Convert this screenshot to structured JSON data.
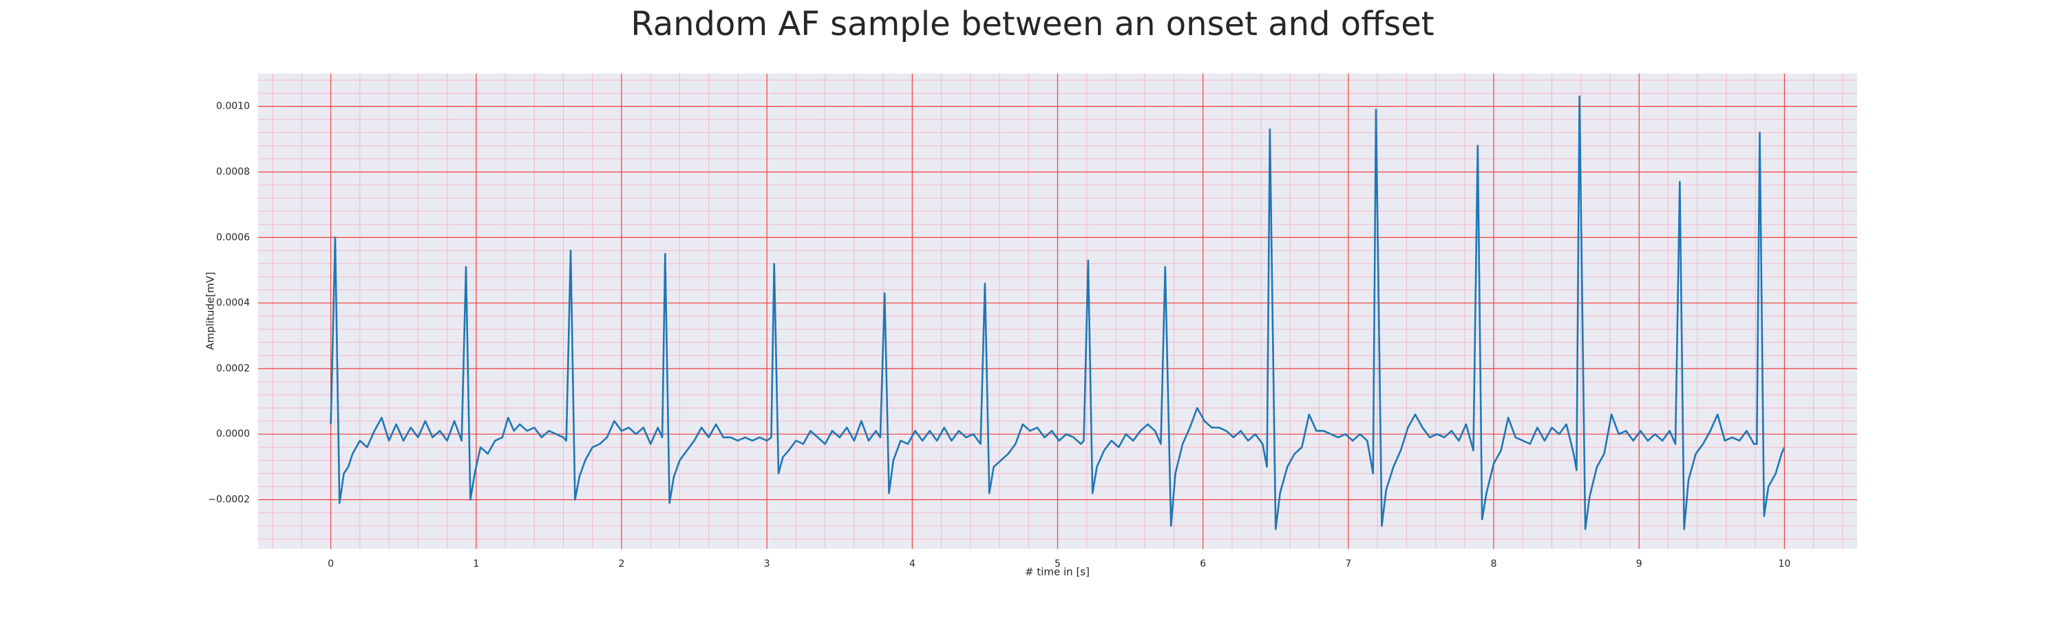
{
  "chart_data": {
    "type": "line",
    "title": "Random AF sample between an onset and offset",
    "x_label": "# time in [s]",
    "y_label": "Amplitude[mV]",
    "color": "#1f77b4",
    "grid": true,
    "minor_grid": true,
    "xlim": [
      -0.5,
      10.5
    ],
    "ylim": [
      -0.00035,
      0.0011
    ],
    "xticks": [
      0,
      1,
      2,
      3,
      4,
      5,
      6,
      7,
      8,
      9,
      10
    ],
    "yticks": [
      {
        "value": -0.0002,
        "label": "−0.0002"
      },
      {
        "value": 0,
        "label": "0.0000"
      },
      {
        "value": 0.0002,
        "label": "0.0002"
      },
      {
        "value": 0.0004,
        "label": "0.0004"
      },
      {
        "value": 0.0006,
        "label": "0.0006"
      },
      {
        "value": 0.0008,
        "label": "0.0008"
      },
      {
        "value": 0.001,
        "label": "0.0010"
      }
    ],
    "x": [
      0,
      0.03,
      0.06,
      0.09,
      0.12,
      0.15,
      0.2,
      0.25,
      0.3,
      0.35,
      0.4,
      0.45,
      0.5,
      0.55,
      0.6,
      0.65,
      0.7,
      0.75,
      0.8,
      0.85,
      0.9,
      0.93,
      0.96,
      0.99,
      1.03,
      1.08,
      1.13,
      1.18,
      1.22,
      1.26,
      1.3,
      1.35,
      1.4,
      1.45,
      1.5,
      1.55,
      1.6,
      1.62,
      1.65,
      1.68,
      1.71,
      1.75,
      1.8,
      1.85,
      1.9,
      1.95,
      2,
      2.05,
      2.1,
      2.15,
      2.2,
      2.25,
      2.28,
      2.3,
      2.33,
      2.36,
      2.4,
      2.45,
      2.5,
      2.55,
      2.6,
      2.65,
      2.7,
      2.75,
      2.8,
      2.85,
      2.9,
      2.95,
      3,
      3.03,
      3.05,
      3.08,
      3.11,
      3.15,
      3.2,
      3.25,
      3.3,
      3.35,
      3.4,
      3.45,
      3.5,
      3.55,
      3.6,
      3.65,
      3.7,
      3.75,
      3.78,
      3.81,
      3.84,
      3.87,
      3.92,
      3.97,
      4.02,
      4.07,
      4.12,
      4.17,
      4.22,
      4.27,
      4.32,
      4.37,
      4.42,
      4.47,
      4.5,
      4.53,
      4.56,
      4.61,
      4.66,
      4.71,
      4.76,
      4.81,
      4.86,
      4.91,
      4.96,
      5.01,
      5.06,
      5.11,
      5.16,
      5.18,
      5.21,
      5.24,
      5.27,
      5.32,
      5.37,
      5.42,
      5.47,
      5.52,
      5.57,
      5.62,
      5.67,
      5.71,
      5.74,
      5.78,
      5.81,
      5.86,
      5.91,
      5.96,
      6.01,
      6.06,
      6.11,
      6.16,
      6.21,
      6.26,
      6.31,
      6.36,
      6.41,
      6.44,
      6.46,
      6.5,
      6.53,
      6.58,
      6.63,
      6.68,
      6.73,
      6.78,
      6.83,
      6.88,
      6.93,
      6.98,
      7.03,
      7.08,
      7.13,
      7.17,
      7.19,
      7.23,
      7.26,
      7.31,
      7.36,
      7.41,
      7.46,
      7.51,
      7.56,
      7.61,
      7.66,
      7.71,
      7.76,
      7.81,
      7.86,
      7.89,
      7.92,
      7.95,
      8,
      8.05,
      8.1,
      8.15,
      8.2,
      8.25,
      8.3,
      8.35,
      8.4,
      8.45,
      8.5,
      8.55,
      8.57,
      8.59,
      8.63,
      8.66,
      8.71,
      8.76,
      8.81,
      8.86,
      8.91,
      8.96,
      9.01,
      9.06,
      9.11,
      9.16,
      9.21,
      9.25,
      9.28,
      9.31,
      9.34,
      9.39,
      9.44,
      9.49,
      9.54,
      9.59,
      9.64,
      9.69,
      9.74,
      9.79,
      9.81,
      9.83,
      9.86,
      9.89,
      9.94,
      9.98,
      10
    ],
    "values": [
      3e-05,
      0.0006,
      -0.00021,
      -0.00012,
      -0.0001,
      -6e-05,
      -2e-05,
      -4e-05,
      1e-05,
      5e-05,
      -2e-05,
      3e-05,
      -2e-05,
      2e-05,
      -1e-05,
      4e-05,
      -1e-05,
      1e-05,
      -2e-05,
      4e-05,
      -2e-05,
      0.00051,
      -0.0002,
      -0.00012,
      -4e-05,
      -6e-05,
      -2e-05,
      -1e-05,
      5e-05,
      1e-05,
      3e-05,
      1e-05,
      2e-05,
      -1e-05,
      1e-05,
      0,
      -1e-05,
      -2e-05,
      0.00056,
      -0.0002,
      -0.00013,
      -8e-05,
      -4e-05,
      -3e-05,
      -1e-05,
      4e-05,
      1e-05,
      2e-05,
      0,
      2e-05,
      -3e-05,
      2e-05,
      -1e-05,
      0.00055,
      -0.00021,
      -0.00013,
      -8e-05,
      -5e-05,
      -2e-05,
      2e-05,
      -1e-05,
      3e-05,
      -1e-05,
      -1e-05,
      -2e-05,
      -1e-05,
      -2e-05,
      -1e-05,
      -2e-05,
      -1e-05,
      0.00052,
      -0.00012,
      -7e-05,
      -5e-05,
      -2e-05,
      -3e-05,
      1e-05,
      -1e-05,
      -3e-05,
      1e-05,
      -1e-05,
      2e-05,
      -2e-05,
      4e-05,
      -2e-05,
      1e-05,
      -1e-05,
      0.00043,
      -0.00018,
      -8e-05,
      -2e-05,
      -3e-05,
      1e-05,
      -2e-05,
      1e-05,
      -2e-05,
      2e-05,
      -2e-05,
      1e-05,
      -1e-05,
      0,
      -3e-05,
      0.00046,
      -0.00018,
      -0.0001,
      -8e-05,
      -6e-05,
      -3e-05,
      3e-05,
      1e-05,
      2e-05,
      -1e-05,
      1e-05,
      -2e-05,
      0,
      -1e-05,
      -3e-05,
      -2e-05,
      0.00053,
      -0.00018,
      -0.0001,
      -5e-05,
      -2e-05,
      -4e-05,
      0,
      -2e-05,
      1e-05,
      3e-05,
      1e-05,
      -3e-05,
      0.00051,
      -0.00028,
      -0.00012,
      -3e-05,
      2e-05,
      8e-05,
      4e-05,
      2e-05,
      2e-05,
      1e-05,
      -1e-05,
      1e-05,
      -2e-05,
      0,
      -3e-05,
      -0.0001,
      0.00093,
      -0.00029,
      -0.00018,
      -0.0001,
      -6e-05,
      -4e-05,
      6e-05,
      1e-05,
      1e-05,
      0,
      -1e-05,
      0,
      -2e-05,
      0,
      -2e-05,
      -0.00012,
      0.00099,
      -0.00028,
      -0.00017,
      -0.0001,
      -5e-05,
      2e-05,
      6e-05,
      2e-05,
      -1e-05,
      0,
      -1e-05,
      1e-05,
      -2e-05,
      3e-05,
      -5e-05,
      0.00088,
      -0.00026,
      -0.00018,
      -9e-05,
      -5e-05,
      5e-05,
      -1e-05,
      -2e-05,
      -3e-05,
      2e-05,
      -2e-05,
      2e-05,
      0,
      3e-05,
      -6e-05,
      -0.00011,
      0.00103,
      -0.00029,
      -0.00019,
      -0.0001,
      -6e-05,
      6e-05,
      0,
      1e-05,
      -2e-05,
      1e-05,
      -2e-05,
      0,
      -2e-05,
      1e-05,
      -3e-05,
      0.00077,
      -0.00029,
      -0.00014,
      -6e-05,
      -3e-05,
      1e-05,
      6e-05,
      -2e-05,
      -1e-05,
      -2e-05,
      1e-05,
      -3e-05,
      -3e-05,
      0.00092,
      -0.00025,
      -0.00016,
      -0.00012,
      -6e-05,
      -4e-05
    ]
  }
}
